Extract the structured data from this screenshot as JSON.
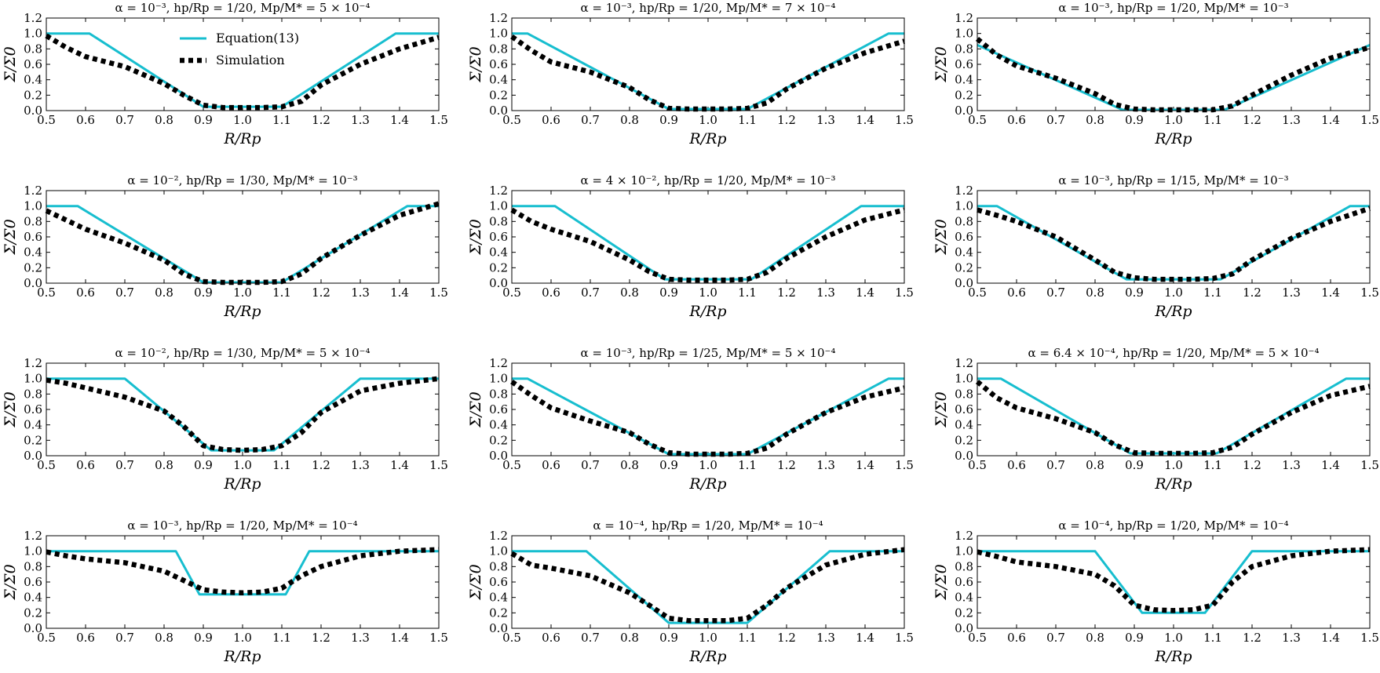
{
  "figure": {
    "series_colors": {
      "equation": "#17becf",
      "simulation": "#000000"
    },
    "legend": {
      "items": [
        "Equation(13)",
        "Simulation"
      ],
      "placement": "top-left of first panel"
    },
    "axis": {
      "xlabel": "R/Rp",
      "ylabel": "Σ/Σ0",
      "xlim": [
        0.5,
        1.5
      ],
      "ylim": [
        0.0,
        1.2
      ],
      "xticks": [
        "0.5",
        "0.6",
        "0.7",
        "0.8",
        "0.9",
        "1.0",
        "1.1",
        "1.2",
        "1.3",
        "1.4",
        "1.5"
      ],
      "yticks": [
        "0.0",
        "0.2",
        "0.4",
        "0.6",
        "0.8",
        "1.0",
        "1.2"
      ]
    }
  },
  "chart_data": [
    {
      "type": "line",
      "title": "α = 10⁻³, hp/Rp = 1/20, Mp/M* = 5 × 10⁻⁴",
      "series": [
        {
          "name": "Equation(13)",
          "x": [
            0.5,
            0.61,
            0.9,
            1.1,
            1.39,
            1.5
          ],
          "values": [
            1.0,
            1.0,
            0.05,
            0.05,
            1.0,
            1.0
          ]
        },
        {
          "name": "Simulation",
          "x": [
            0.5,
            0.55,
            0.6,
            0.7,
            0.8,
            0.85,
            0.9,
            0.95,
            1.0,
            1.05,
            1.1,
            1.15,
            1.2,
            1.3,
            1.4,
            1.5
          ],
          "values": [
            0.97,
            0.82,
            0.7,
            0.57,
            0.35,
            0.2,
            0.07,
            0.04,
            0.04,
            0.04,
            0.05,
            0.12,
            0.33,
            0.6,
            0.8,
            0.95
          ]
        }
      ]
    },
    {
      "type": "line",
      "title": "α = 10⁻³, hp/Rp = 1/20, Mp/M* = 7 × 10⁻⁴",
      "series": [
        {
          "name": "Equation(13)",
          "x": [
            0.5,
            0.54,
            0.9,
            1.1,
            1.46,
            1.5
          ],
          "values": [
            1.0,
            1.0,
            0.02,
            0.02,
            1.0,
            1.0
          ]
        },
        {
          "name": "Simulation",
          "x": [
            0.5,
            0.55,
            0.6,
            0.7,
            0.8,
            0.85,
            0.9,
            0.95,
            1.0,
            1.05,
            1.1,
            1.15,
            1.2,
            1.3,
            1.4,
            1.5
          ],
          "values": [
            0.96,
            0.78,
            0.63,
            0.5,
            0.3,
            0.14,
            0.03,
            0.02,
            0.02,
            0.02,
            0.03,
            0.1,
            0.28,
            0.55,
            0.75,
            0.9
          ]
        }
      ]
    },
    {
      "type": "line",
      "title": "α = 10⁻³, hp/Rp = 1/20, Mp/M* = 10⁻³",
      "series": [
        {
          "name": "Equation(13)",
          "x": [
            0.5,
            0.87,
            1.13,
            1.5
          ],
          "values": [
            0.85,
            0.01,
            0.01,
            0.85
          ]
        },
        {
          "name": "Simulation",
          "x": [
            0.5,
            0.55,
            0.6,
            0.7,
            0.8,
            0.85,
            0.9,
            0.95,
            1.0,
            1.05,
            1.1,
            1.15,
            1.2,
            1.3,
            1.4,
            1.5
          ],
          "values": [
            0.93,
            0.72,
            0.58,
            0.42,
            0.22,
            0.08,
            0.02,
            0.01,
            0.01,
            0.01,
            0.01,
            0.06,
            0.2,
            0.46,
            0.68,
            0.82
          ]
        }
      ]
    },
    {
      "type": "line",
      "title": "α = 10⁻², hp/Rp = 1/30, Mp/M* = 10⁻³",
      "series": [
        {
          "name": "Equation(13)",
          "x": [
            0.5,
            0.58,
            0.9,
            1.1,
            1.42,
            1.5
          ],
          "values": [
            1.0,
            1.0,
            0.01,
            0.01,
            1.0,
            1.0
          ]
        },
        {
          "name": "Simulation",
          "x": [
            0.5,
            0.55,
            0.6,
            0.7,
            0.8,
            0.85,
            0.9,
            0.95,
            1.0,
            1.05,
            1.1,
            1.15,
            1.2,
            1.3,
            1.4,
            1.5
          ],
          "values": [
            0.94,
            0.82,
            0.7,
            0.52,
            0.3,
            0.12,
            0.02,
            0.01,
            0.01,
            0.01,
            0.02,
            0.12,
            0.32,
            0.62,
            0.88,
            1.03
          ]
        }
      ]
    },
    {
      "type": "line",
      "title": "α = 4 × 10⁻², hp/Rp = 1/20, Mp/M* = 10⁻³",
      "series": [
        {
          "name": "Equation(13)",
          "x": [
            0.5,
            0.61,
            0.89,
            1.11,
            1.39,
            1.5
          ],
          "values": [
            1.0,
            1.0,
            0.05,
            0.05,
            1.0,
            1.0
          ]
        },
        {
          "name": "Simulation",
          "x": [
            0.5,
            0.55,
            0.6,
            0.7,
            0.8,
            0.85,
            0.9,
            0.95,
            1.0,
            1.05,
            1.1,
            1.15,
            1.2,
            1.3,
            1.4,
            1.5
          ],
          "values": [
            0.95,
            0.8,
            0.7,
            0.54,
            0.3,
            0.15,
            0.05,
            0.04,
            0.04,
            0.04,
            0.05,
            0.14,
            0.32,
            0.6,
            0.82,
            0.95
          ]
        }
      ]
    },
    {
      "type": "line",
      "title": "α = 10⁻³, hp/Rp = 1/15, Mp/M* = 10⁻³",
      "series": [
        {
          "name": "Equation(13)",
          "x": [
            0.5,
            0.55,
            0.88,
            1.12,
            1.45,
            1.5
          ],
          "values": [
            1.0,
            1.0,
            0.05,
            0.05,
            1.0,
            1.0
          ]
        },
        {
          "name": "Simulation",
          "x": [
            0.5,
            0.55,
            0.6,
            0.7,
            0.8,
            0.85,
            0.9,
            0.95,
            1.0,
            1.05,
            1.1,
            1.15,
            1.2,
            1.3,
            1.4,
            1.5
          ],
          "values": [
            0.95,
            0.88,
            0.8,
            0.6,
            0.3,
            0.14,
            0.07,
            0.05,
            0.05,
            0.05,
            0.06,
            0.12,
            0.3,
            0.58,
            0.8,
            0.97
          ]
        }
      ]
    },
    {
      "type": "line",
      "title": "α = 10⁻², hp/Rp = 1/30, Mp/M* = 5 × 10⁻⁴",
      "series": [
        {
          "name": "Equation(13)",
          "x": [
            0.5,
            0.7,
            0.92,
            1.08,
            1.3,
            1.5
          ],
          "values": [
            1.0,
            1.0,
            0.07,
            0.07,
            1.0,
            1.0
          ]
        },
        {
          "name": "Simulation",
          "x": [
            0.5,
            0.55,
            0.6,
            0.7,
            0.8,
            0.85,
            0.9,
            0.95,
            1.0,
            1.05,
            1.1,
            1.15,
            1.2,
            1.3,
            1.4,
            1.5
          ],
          "values": [
            0.98,
            0.94,
            0.88,
            0.76,
            0.58,
            0.38,
            0.13,
            0.08,
            0.07,
            0.08,
            0.13,
            0.3,
            0.56,
            0.84,
            0.94,
            1.0
          ]
        }
      ]
    },
    {
      "type": "line",
      "title": "α = 10⁻³, hp/Rp = 1/25, Mp/M* = 5 × 10⁻⁴",
      "series": [
        {
          "name": "Equation(13)",
          "x": [
            0.5,
            0.54,
            0.9,
            1.1,
            1.46,
            1.5
          ],
          "values": [
            1.0,
            1.0,
            0.02,
            0.02,
            1.0,
            1.0
          ]
        },
        {
          "name": "Simulation",
          "x": [
            0.5,
            0.55,
            0.6,
            0.7,
            0.8,
            0.85,
            0.9,
            0.95,
            1.0,
            1.05,
            1.1,
            1.15,
            1.2,
            1.3,
            1.4,
            1.5
          ],
          "values": [
            0.96,
            0.78,
            0.62,
            0.45,
            0.3,
            0.15,
            0.04,
            0.02,
            0.02,
            0.02,
            0.03,
            0.1,
            0.28,
            0.56,
            0.76,
            0.88
          ]
        }
      ]
    },
    {
      "type": "line",
      "title": "α = 6.4 × 10⁻⁴, hp/Rp = 1/20, Mp/M* = 5 × 10⁻⁴",
      "series": [
        {
          "name": "Equation(13)",
          "x": [
            0.5,
            0.56,
            0.89,
            1.11,
            1.44,
            1.5
          ],
          "values": [
            1.0,
            1.0,
            0.03,
            0.03,
            1.0,
            1.0
          ]
        },
        {
          "name": "Simulation",
          "x": [
            0.5,
            0.55,
            0.6,
            0.7,
            0.8,
            0.85,
            0.9,
            0.95,
            1.0,
            1.05,
            1.1,
            1.15,
            1.2,
            1.3,
            1.4,
            1.5
          ],
          "values": [
            0.96,
            0.75,
            0.62,
            0.48,
            0.3,
            0.14,
            0.04,
            0.03,
            0.03,
            0.03,
            0.04,
            0.11,
            0.28,
            0.56,
            0.78,
            0.9
          ]
        }
      ]
    },
    {
      "type": "line",
      "title": "α = 10⁻³, hp/Rp = 1/20, Mp/M* = 10⁻⁴",
      "series": [
        {
          "name": "Equation(13)",
          "x": [
            0.5,
            0.83,
            0.89,
            1.11,
            1.17,
            1.5
          ],
          "values": [
            1.0,
            1.0,
            0.44,
            0.44,
            1.0,
            1.0
          ]
        },
        {
          "name": "Simulation",
          "x": [
            0.5,
            0.55,
            0.6,
            0.7,
            0.8,
            0.85,
            0.9,
            0.95,
            1.0,
            1.05,
            1.1,
            1.15,
            1.2,
            1.3,
            1.4,
            1.5
          ],
          "values": [
            0.99,
            0.94,
            0.9,
            0.85,
            0.74,
            0.62,
            0.5,
            0.47,
            0.46,
            0.47,
            0.52,
            0.68,
            0.8,
            0.94,
            1.0,
            1.02
          ]
        }
      ]
    },
    {
      "type": "line",
      "title": "α = 10⁻⁴, hp/Rp = 1/20, Mp/M* = 10⁻⁴",
      "series": [
        {
          "name": "Equation(13)",
          "x": [
            0.5,
            0.69,
            0.9,
            1.1,
            1.31,
            1.5
          ],
          "values": [
            1.0,
            1.0,
            0.07,
            0.07,
            1.0,
            1.0
          ]
        },
        {
          "name": "Simulation",
          "x": [
            0.5,
            0.55,
            0.6,
            0.7,
            0.8,
            0.85,
            0.9,
            0.95,
            1.0,
            1.05,
            1.1,
            1.15,
            1.2,
            1.3,
            1.4,
            1.5
          ],
          "values": [
            0.97,
            0.82,
            0.78,
            0.68,
            0.46,
            0.3,
            0.13,
            0.1,
            0.1,
            0.1,
            0.13,
            0.3,
            0.52,
            0.82,
            0.96,
            1.02
          ]
        }
      ]
    },
    {
      "type": "line",
      "title": "α = 10⁻⁴, hp/Rp = 1/20, Mp/M* = 10⁻⁴",
      "series": [
        {
          "name": "Equation(13)",
          "x": [
            0.5,
            0.8,
            0.92,
            1.08,
            1.2,
            1.5
          ],
          "values": [
            1.0,
            1.0,
            0.2,
            0.2,
            1.0,
            1.0
          ]
        },
        {
          "name": "Simulation",
          "x": [
            0.5,
            0.55,
            0.6,
            0.7,
            0.8,
            0.85,
            0.9,
            0.95,
            1.0,
            1.05,
            1.1,
            1.15,
            1.2,
            1.3,
            1.4,
            1.5
          ],
          "values": [
            0.99,
            0.93,
            0.86,
            0.8,
            0.7,
            0.55,
            0.3,
            0.24,
            0.23,
            0.24,
            0.3,
            0.6,
            0.8,
            0.94,
            1.0,
            1.02
          ]
        }
      ]
    }
  ]
}
